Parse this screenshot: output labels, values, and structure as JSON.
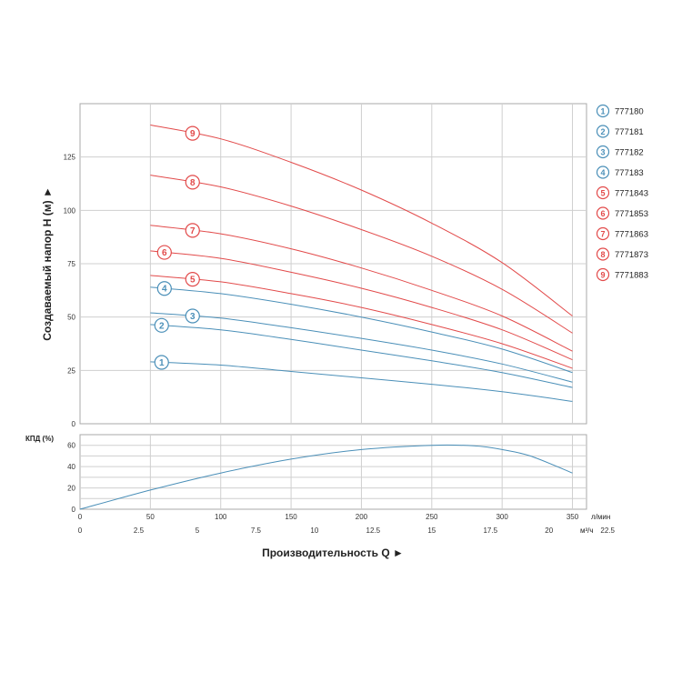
{
  "chart_data": [
    {
      "type": "line",
      "title": "",
      "ylabel": "Создаваемый напор H (м) ►",
      "xlabel": "",
      "xlim": [
        0,
        360
      ],
      "ylim": [
        0,
        150
      ],
      "yticks": [
        "0",
        "25",
        "50",
        "75",
        "100",
        "125"
      ],
      "ytick_values": [
        0,
        25,
        50,
        75,
        100,
        125
      ],
      "grid": true,
      "legend_position": "right",
      "series": [
        {
          "marker": "1",
          "name": "777180",
          "color": "#4a8fb8",
          "x": [
            50,
            100,
            150,
            200,
            250,
            300,
            350
          ],
          "y": [
            29,
            27.5,
            24.5,
            21.5,
            18.5,
            15,
            10.5
          ]
        },
        {
          "marker": "2",
          "name": "777181",
          "color": "#4a8fb8",
          "x": [
            50,
            100,
            150,
            200,
            250,
            300,
            350
          ],
          "y": [
            46.5,
            44,
            39.5,
            34.5,
            29.5,
            24,
            17
          ]
        },
        {
          "marker": "3",
          "name": "777182",
          "color": "#4a8fb8",
          "x": [
            50,
            100,
            150,
            200,
            250,
            300,
            350
          ],
          "y": [
            52,
            49.5,
            45,
            40,
            34.5,
            28,
            19.5
          ]
        },
        {
          "marker": "4",
          "name": "777183",
          "color": "#4a8fb8",
          "x": [
            50,
            100,
            150,
            200,
            250,
            300,
            350
          ],
          "y": [
            64,
            61,
            56,
            50,
            43,
            35,
            24
          ]
        },
        {
          "marker": "5",
          "name": "7771843",
          "color": "#e24a4a",
          "x": [
            50,
            100,
            150,
            200,
            250,
            300,
            350
          ],
          "y": [
            69.5,
            66.5,
            61,
            54.5,
            46.5,
            37.5,
            26
          ]
        },
        {
          "marker": "6",
          "name": "7771853",
          "color": "#e24a4a",
          "x": [
            50,
            100,
            150,
            200,
            250,
            300,
            350
          ],
          "y": [
            81,
            77.5,
            71,
            63.5,
            54.5,
            44,
            30
          ]
        },
        {
          "marker": "7",
          "name": "7771863",
          "color": "#e24a4a",
          "x": [
            50,
            100,
            150,
            200,
            250,
            300,
            350
          ],
          "y": [
            93,
            89,
            82,
            73,
            62.5,
            50.5,
            34
          ]
        },
        {
          "marker": "8",
          "name": "7771873",
          "color": "#e24a4a",
          "x": [
            50,
            100,
            150,
            200,
            250,
            300,
            350
          ],
          "y": [
            116.5,
            111,
            102,
            91,
            78.5,
            63,
            42.5
          ]
        },
        {
          "marker": "9",
          "name": "7771883",
          "color": "#e24a4a",
          "x": [
            50,
            100,
            150,
            200,
            250,
            300,
            350
          ],
          "y": [
            140,
            133.5,
            122.5,
            109.5,
            94,
            75.5,
            50.5
          ]
        }
      ]
    },
    {
      "type": "line",
      "title": "",
      "ylabel": "КПД (%)",
      "xlabel": "Производительность Q ►",
      "xlim": [
        0,
        360
      ],
      "ylim": [
        0,
        70
      ],
      "yticks": [
        "0",
        "20",
        "40",
        "60"
      ],
      "ytick_values": [
        0,
        20,
        40,
        60
      ],
      "grid": true,
      "x_axis_primary": {
        "unit": "л/мин",
        "ticks": [
          "0",
          "50",
          "100",
          "150",
          "200",
          "250",
          "300",
          "350"
        ],
        "tick_values": [
          0,
          50,
          100,
          150,
          200,
          250,
          300,
          350
        ]
      },
      "x_axis_secondary": {
        "unit": "м³/ч",
        "ticks": [
          "0",
          "2.5",
          "5",
          "7.5",
          "10",
          "12.5",
          "15",
          "17.5",
          "20",
          "22.5"
        ],
        "tick_values": [
          0,
          2.5,
          5,
          7.5,
          10,
          12.5,
          15,
          17.5,
          20,
          22.5
        ]
      },
      "series": [
        {
          "color": "#4a8fb8",
          "x": [
            0,
            50,
            100,
            150,
            200,
            250,
            280,
            300,
            320,
            350
          ],
          "y": [
            0,
            18,
            34,
            47,
            56,
            60,
            59.5,
            56,
            50,
            34
          ]
        }
      ]
    }
  ]
}
